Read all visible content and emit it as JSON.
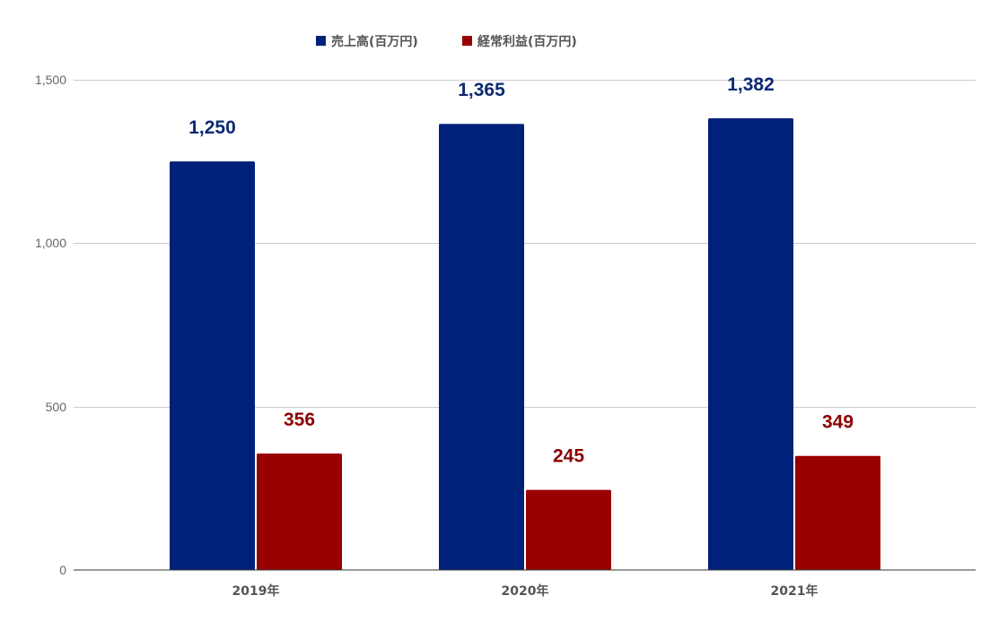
{
  "chart_data": {
    "type": "bar",
    "categories": [
      "2019年",
      "2020年",
      "2021年"
    ],
    "series": [
      {
        "name": "売上高(百万円)",
        "values": [
          1250,
          1365,
          1382
        ],
        "color": "#002179",
        "label_color": "#0d2a72"
      },
      {
        "name": "経常利益(百万円)",
        "values": [
          356,
          245,
          349
        ],
        "color": "#990000",
        "label_color": "#8b0000"
      }
    ],
    "data_labels": [
      [
        "1,250",
        "1,365",
        "1,382"
      ],
      [
        "356",
        "245",
        "349"
      ]
    ],
    "yticks": [
      0,
      500,
      1000,
      1500
    ],
    "ytick_labels": [
      "0",
      "500",
      "1,000",
      "1,500"
    ],
    "ylim": [
      0,
      1500
    ],
    "grid": true,
    "legend_position": "top-center",
    "grid_color": "#cccccc",
    "axis_color": "#333333"
  }
}
